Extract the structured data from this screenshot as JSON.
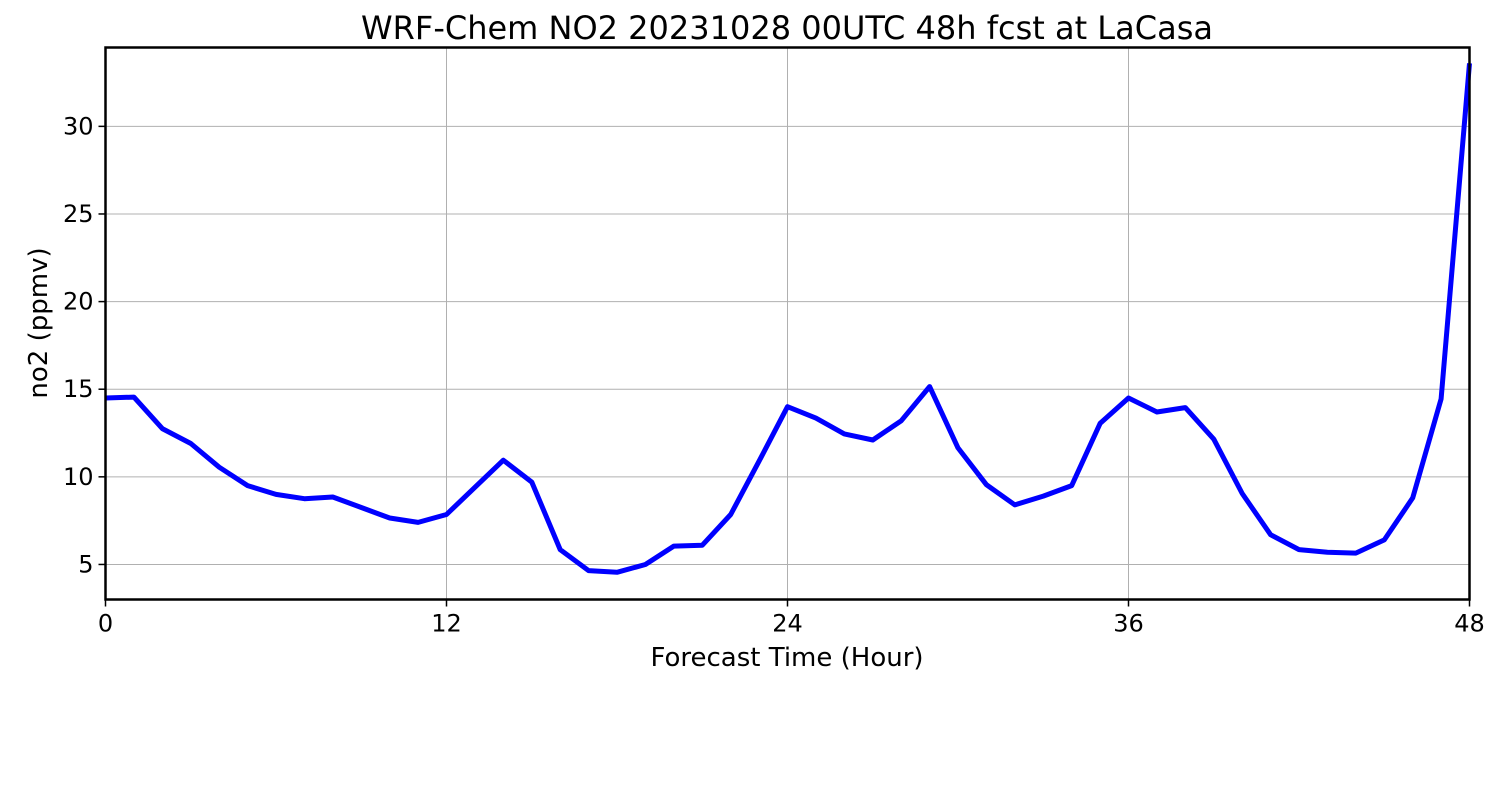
{
  "chart_data": {
    "type": "line",
    "title": "WRF-Chem NO2  20231028 00UTC 48h fcst at LaCasa",
    "xlabel": "Forecast Time (Hour)",
    "ylabel": "no2  (ppmv)",
    "xlim": [
      0,
      48
    ],
    "ylim": [
      3.0,
      34.5
    ],
    "xticks": [
      0,
      12,
      24,
      36,
      48
    ],
    "yticks": [
      5,
      10,
      15,
      20,
      25,
      30
    ],
    "grid": true,
    "legend": "none",
    "series": [
      {
        "color": "#0000ff",
        "x": [
          0,
          1,
          2,
          3,
          4,
          5,
          6,
          7,
          8,
          9,
          10,
          11,
          12,
          13,
          14,
          15,
          16,
          17,
          18,
          19,
          20,
          21,
          22,
          23,
          24,
          25,
          26,
          27,
          28,
          29,
          30,
          31,
          32,
          33,
          34,
          35,
          36,
          37,
          38,
          39,
          40,
          41,
          42,
          43,
          44,
          45,
          46,
          47,
          48
        ],
        "values": [
          14.5,
          14.55,
          12.75,
          11.9,
          10.55,
          9.5,
          9.0,
          8.75,
          8.85,
          8.25,
          7.65,
          7.4,
          7.85,
          9.4,
          10.95,
          9.7,
          5.85,
          4.65,
          4.55,
          5.0,
          6.05,
          6.1,
          7.85,
          10.9,
          14.0,
          13.35,
          12.45,
          12.1,
          13.2,
          15.15,
          11.65,
          9.55,
          8.4,
          8.9,
          9.5,
          13.05,
          14.5,
          13.7,
          13.95,
          12.15,
          9.05,
          6.7,
          5.85,
          5.7,
          5.65,
          6.4,
          8.8,
          14.45,
          33.6
        ]
      }
    ]
  }
}
